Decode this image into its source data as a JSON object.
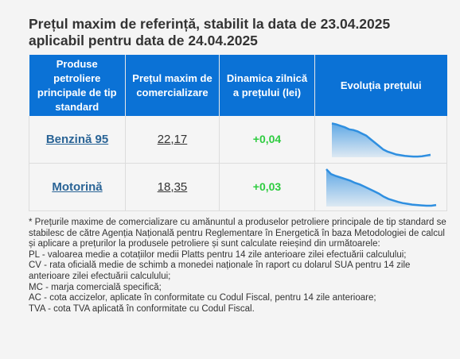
{
  "title": {
    "line1": "Prețul maxim de referință, stabilit la data de 23.04.2025",
    "line2": "aplicabil pentru data de 24.04.2025"
  },
  "table": {
    "headers": [
      "Produse petroliere principale de tip standard",
      "Prețul maxim de comercializare",
      "Dinamica zilnică a prețului (lei)",
      "Evoluția prețului"
    ],
    "rows": [
      {
        "product": "Benzină 95",
        "price": "22,17",
        "change": "+0,04",
        "trend": [
          0.97,
          0.94,
          0.9,
          0.86,
          0.8,
          0.78,
          0.74,
          0.68,
          0.62,
          0.52,
          0.42,
          0.32,
          0.22,
          0.16,
          0.12,
          0.08,
          0.06,
          0.04,
          0.03,
          0.02,
          0.02,
          0.03,
          0.05,
          0.07
        ]
      },
      {
        "product": "Motorină",
        "price": "18,35",
        "change": "+0,03",
        "trend": [
          0.98,
          0.85,
          0.8,
          0.76,
          0.72,
          0.68,
          0.62,
          0.58,
          0.52,
          0.46,
          0.4,
          0.34,
          0.26,
          0.2,
          0.16,
          0.12,
          0.09,
          0.07,
          0.05,
          0.04,
          0.03,
          0.02,
          0.02,
          0.04
        ]
      }
    ],
    "accent_color": "#0b72d6",
    "positive_color": "#2ecc40",
    "spark_color": "#2f8fe0"
  },
  "notes": [
    "* Prețurile maxime de comercializare cu amănuntul a produselor petroliere principale de tip standard se stabilesc de către Agenția Națională pentru Reglementare în Energetică în baza Metodologiei de calcul și aplicare a prețurilor la produsele petroliere și sunt calculate reieșind din următoarele:",
    "PL - valoarea medie a cotațiilor medii Platts pentru 14 zile anterioare zilei efectuării calculului;",
    "CV - rata oficială medie de schimb a monedei naționale în raport cu dolarul SUA pentru 14 zile anterioare zilei efectuării calculului;",
    "MC - marja comercială specifică;",
    "AC - cota accizelor, aplicate în conformitate cu Codul Fiscal, pentru 14 zile anterioare;",
    "TVA - cota TVA aplicată în conformitate cu Codul Fiscal."
  ]
}
